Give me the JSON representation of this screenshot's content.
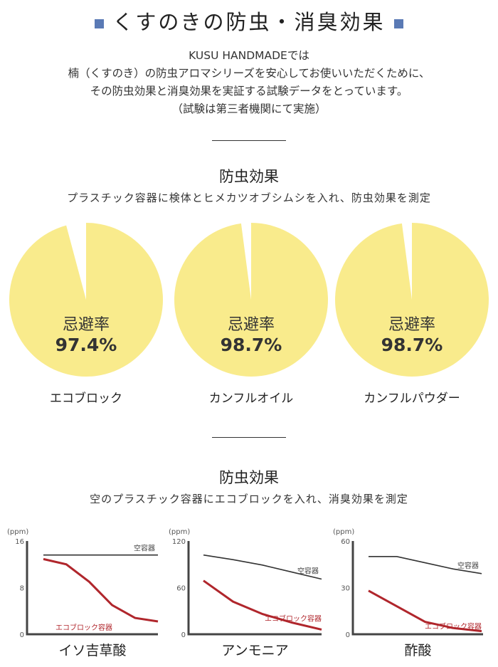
{
  "header": {
    "title": "くすのきの防虫・消臭効果",
    "bullet_color": "#5a7ab5"
  },
  "intro": {
    "lines": [
      "KUSU HANDMADEでは",
      "楠（くすのき）の防虫アロマシリーズを安心してお使いいただくために、",
      "その防虫効果と消臭効果を実証する試験データをとっています。",
      "（試験は第三者機関にて実施）"
    ]
  },
  "section1": {
    "title": "防虫効果",
    "subtitle": "プラスチック容器に検体とヒメカツオブシムシを入れ、防虫効果を測定"
  },
  "section2": {
    "title": "防虫効果",
    "subtitle": "空のプラスチック容器にエコブロックを入れ、消臭効果を測定"
  },
  "chart_data": [
    {
      "type": "pie",
      "name": "エコブロック",
      "caption": "忌避率",
      "value_label": "97.4%",
      "values": [
        97.4,
        2.6
      ],
      "color": "#f9eb8c"
    },
    {
      "type": "pie",
      "name": "カンフルオイル",
      "caption": "忌避率",
      "value_label": "98.7%",
      "values": [
        98.7,
        1.3
      ],
      "color": "#f9eb8c"
    },
    {
      "type": "pie",
      "name": "カンフルパウダー",
      "caption": "忌避率",
      "value_label": "98.7%",
      "values": [
        98.7,
        1.3
      ],
      "color": "#f9eb8c"
    },
    {
      "type": "line",
      "title": "イソ吉草酸",
      "ylabel": "(ppm)",
      "ylim": [
        0,
        16
      ],
      "yticks": [
        "0",
        "8",
        "16"
      ],
      "series": [
        {
          "name": "空容器",
          "color": "#333333",
          "values": [
            13.6,
            13.6,
            13.6,
            13.6,
            13.6,
            13.6
          ]
        },
        {
          "name": "エコブロック容器",
          "color": "#b0262c",
          "values": [
            12.9,
            12.0,
            9.0,
            5.0,
            2.8,
            2.2
          ]
        }
      ]
    },
    {
      "type": "line",
      "title": "アンモニア",
      "ylabel": "(ppm)",
      "ylim": [
        0,
        120
      ],
      "yticks": [
        "0",
        "60",
        "120"
      ],
      "series": [
        {
          "name": "空容器",
          "color": "#333333",
          "values": [
            102,
            96,
            89,
            80,
            71
          ]
        },
        {
          "name": "エコブロック容器",
          "color": "#b0262c",
          "values": [
            69,
            42,
            26,
            15,
            6
          ]
        }
      ]
    },
    {
      "type": "line",
      "title": "酢酸",
      "ylabel": "(ppm)",
      "ylim": [
        0,
        60
      ],
      "yticks": [
        "0",
        "30",
        "60"
      ],
      "series": [
        {
          "name": "空容器",
          "color": "#333333",
          "values": [
            50,
            50,
            46,
            42,
            39
          ]
        },
        {
          "name": "エコブロック容器",
          "color": "#b0262c",
          "values": [
            28,
            18,
            8,
            4,
            2
          ]
        }
      ]
    }
  ]
}
